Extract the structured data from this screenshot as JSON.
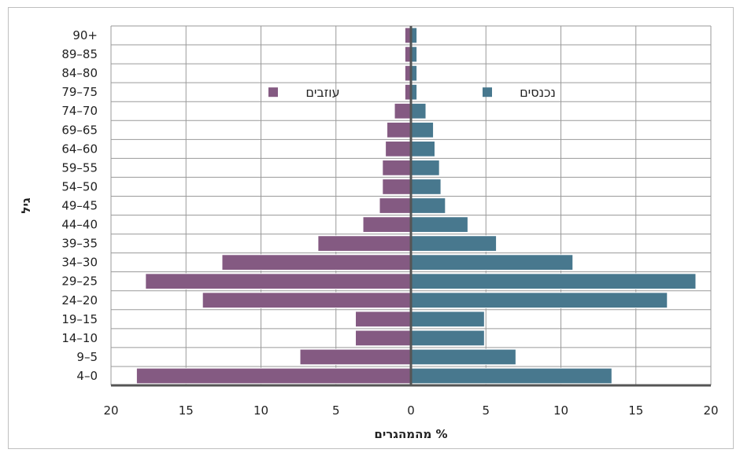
{
  "chart_data": {
    "type": "bar",
    "orientation": "horizontal",
    "subtype": "population-pyramid",
    "title": "",
    "xlabel": "% מהמהגרים",
    "ylabel": "גיל",
    "xlim": [
      -20,
      20
    ],
    "x_ticks": [
      -20,
      -15,
      -10,
      -5,
      0,
      5,
      10,
      15,
      20
    ],
    "x_tick_labels": [
      "20",
      "15",
      "10",
      "5",
      "0",
      "5",
      "10",
      "15",
      "20"
    ],
    "grid": true,
    "legend_position": "top-center",
    "categories": [
      "4–0",
      "9–5",
      "14–10",
      "19–15",
      "24–20",
      "29–25",
      "34–30",
      "39–35",
      "44–40",
      "49–45",
      "54–50",
      "59–55",
      "64–60",
      "69–65",
      "74–70",
      "79–75",
      "84–80",
      "89–85",
      "90+"
    ],
    "series": [
      {
        "name": "עוזבים",
        "side": "left",
        "color": "#845a82",
        "values": [
          18.3,
          7.4,
          3.7,
          3.7,
          13.9,
          17.7,
          12.6,
          6.2,
          3.2,
          2.1,
          1.9,
          1.9,
          1.7,
          1.6,
          1.1,
          0.4,
          0.4,
          0.4,
          0.4
        ]
      },
      {
        "name": "נכנסים",
        "side": "right",
        "color": "#48788e",
        "values": [
          13.4,
          7.0,
          4.9,
          4.9,
          17.1,
          19.0,
          10.8,
          5.7,
          3.8,
          2.3,
          2.0,
          1.9,
          1.6,
          1.5,
          1.0,
          0.4,
          0.4,
          0.4,
          0.4
        ]
      }
    ]
  }
}
